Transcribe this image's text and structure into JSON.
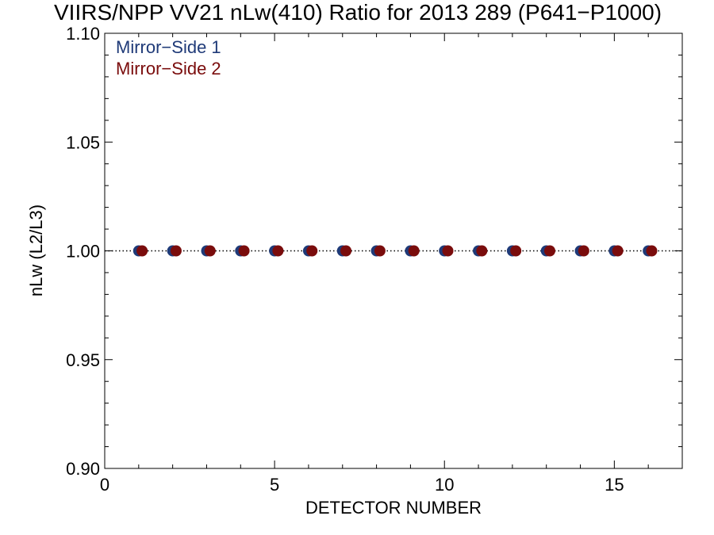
{
  "chart_data": {
    "type": "scatter",
    "title": "VIIRS/NPP VV21 nLw(410) Ratio for 2013 289 (P641−P1000)",
    "xlabel": "DETECTOR NUMBER",
    "ylabel": "nLw (L2/L3)",
    "xlim": [
      0,
      17
    ],
    "ylim": [
      0.9,
      1.1
    ],
    "xticks": [
      "0",
      "5",
      "10",
      "15"
    ],
    "yticks": [
      "0.90",
      "0.95",
      "1.00",
      "1.05",
      "1.10"
    ],
    "reference_line": 1.0,
    "grid": false,
    "legend_position": "top-left",
    "series": [
      {
        "name": "Mirror−Side 1",
        "color": "#1f3a78",
        "x": [
          1,
          2,
          3,
          4,
          5,
          6,
          7,
          8,
          9,
          10,
          11,
          12,
          13,
          14,
          15,
          16
        ],
        "y": [
          1,
          1,
          1,
          1,
          1,
          1,
          1,
          1,
          1,
          1,
          1,
          1,
          1,
          1,
          1,
          1
        ]
      },
      {
        "name": "Mirror−Side 2",
        "color": "#7a0c0c",
        "x": [
          1.1,
          2.1,
          3.1,
          4.1,
          5.1,
          6.1,
          7.1,
          8.1,
          9.1,
          10.1,
          11.1,
          12.1,
          13.1,
          14.1,
          15.1,
          16.1
        ],
        "y": [
          1,
          1,
          1,
          1,
          1,
          1,
          1,
          1,
          1,
          1,
          1,
          1,
          1,
          1,
          1,
          1
        ]
      }
    ]
  }
}
